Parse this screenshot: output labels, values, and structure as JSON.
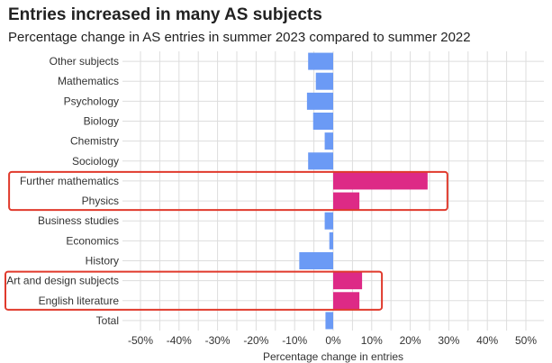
{
  "chart_data": {
    "type": "bar",
    "orientation": "horizontal",
    "title": "Entries increased in many AS subjects",
    "subtitle": "Percentage change in AS entries in summer 2023 compared to summer 2022",
    "xlabel": "Percentage change in entries",
    "ylabel": "",
    "xlim": [
      -0.5,
      0.5
    ],
    "x_ticks": [
      -0.5,
      -0.4,
      -0.3,
      -0.2,
      -0.1,
      0,
      0.1,
      0.2,
      0.3,
      0.4,
      0.5
    ],
    "x_tick_labels": [
      "-50%",
      "-40%",
      "-30%",
      "-20%",
      "-10%",
      "0%",
      "10%",
      "20%",
      "30%",
      "40%",
      "50%"
    ],
    "grid": true,
    "legend": "none",
    "categories": [
      "Other subjects",
      "Mathematics",
      "Psychology",
      "Biology",
      "Chemistry",
      "Sociology",
      "Further mathematics",
      "Physics",
      "Business studies",
      "Economics",
      "History",
      "Art and design subjects",
      "English literature",
      "Total"
    ],
    "values": [
      -0.065,
      -0.045,
      -0.068,
      -0.052,
      -0.022,
      -0.065,
      0.245,
      0.068,
      -0.022,
      -0.01,
      -0.088,
      0.075,
      0.068,
      -0.02
    ],
    "colors": {
      "negative": "#6b9af5",
      "positive": "#dd2a86",
      "highlight_box": "#e03a2c",
      "grid": "#dddddd"
    },
    "highlight_groups": [
      [
        "Further mathematics",
        "Physics"
      ],
      [
        "Art and design subjects",
        "English literature"
      ]
    ]
  }
}
